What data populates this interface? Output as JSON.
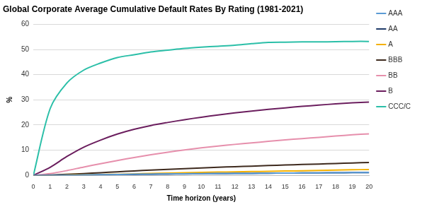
{
  "chart_data": {
    "type": "line",
    "title": "Global Corporate Average Cumulative Default Rates By Rating (1981-2021)",
    "x_label": "Time horizon (years)",
    "y_label": "%",
    "x": [
      0,
      1,
      2,
      3,
      4,
      5,
      6,
      7,
      8,
      9,
      10,
      11,
      12,
      13,
      14,
      15,
      16,
      17,
      18,
      19,
      20
    ],
    "xlim": [
      0,
      20
    ],
    "xticks": [
      0,
      1,
      2,
      3,
      4,
      5,
      6,
      7,
      8,
      9,
      10,
      11,
      12,
      13,
      14,
      15,
      16,
      17,
      18,
      19,
      20
    ],
    "ylim": [
      0,
      60
    ],
    "yticks": [
      0,
      10,
      20,
      30,
      40,
      50,
      60
    ],
    "grid": true,
    "legend": "right",
    "series": [
      {
        "name": "AAA",
        "color": "#5b9bd5",
        "values": [
          0,
          0,
          0.03,
          0.13,
          0.24,
          0.35,
          0.45,
          0.51,
          0.59,
          0.65,
          0.7,
          0.73,
          0.76,
          0.79,
          0.85,
          0.92,
          0.94,
          0.97,
          1.03,
          1.09,
          1.09
        ]
      },
      {
        "name": "AA",
        "color": "#1f3a68",
        "values": [
          0,
          0.02,
          0.05,
          0.1,
          0.18,
          0.26,
          0.35,
          0.43,
          0.5,
          0.57,
          0.64,
          0.69,
          0.74,
          0.79,
          0.84,
          0.89,
          0.94,
          0.99,
          1.04,
          1.09,
          1.14
        ]
      },
      {
        "name": "A",
        "color": "#f4b000",
        "values": [
          0,
          0.05,
          0.13,
          0.21,
          0.32,
          0.44,
          0.57,
          0.74,
          0.88,
          1.02,
          1.16,
          1.29,
          1.4,
          1.5,
          1.6,
          1.71,
          1.82,
          1.95,
          2.08,
          2.21,
          2.32
        ]
      },
      {
        "name": "BBB",
        "color": "#3e2a1e",
        "values": [
          0,
          0.15,
          0.41,
          0.7,
          1.06,
          1.42,
          1.77,
          2.07,
          2.37,
          2.65,
          2.94,
          3.22,
          3.45,
          3.66,
          3.88,
          4.1,
          4.31,
          4.51,
          4.72,
          4.92,
          5.14
        ]
      },
      {
        "name": "BB",
        "color": "#e68fac",
        "values": [
          0,
          0.7,
          1.9,
          3.3,
          4.6,
          5.9,
          7.1,
          8.2,
          9.2,
          10.1,
          10.9,
          11.6,
          12.3,
          12.9,
          13.5,
          14.1,
          14.6,
          15.1,
          15.6,
          16.1,
          16.5
        ]
      },
      {
        "name": "B",
        "color": "#6b1e5e",
        "values": [
          0,
          3.2,
          7.5,
          11.2,
          14,
          16.4,
          18.3,
          19.8,
          21,
          22.1,
          23.1,
          24,
          24.8,
          25.5,
          26.2,
          26.8,
          27.4,
          27.9,
          28.4,
          28.8,
          29.1
        ]
      },
      {
        "name": "CCC/C",
        "color": "#2bbfa8",
        "values": [
          0,
          26.5,
          36.7,
          41.8,
          44.6,
          46.8,
          47.9,
          49,
          49.7,
          50.4,
          50.9,
          51.3,
          51.7,
          52.3,
          52.8,
          52.9,
          53,
          53,
          53.1,
          53.2,
          53.2
        ]
      }
    ]
  }
}
